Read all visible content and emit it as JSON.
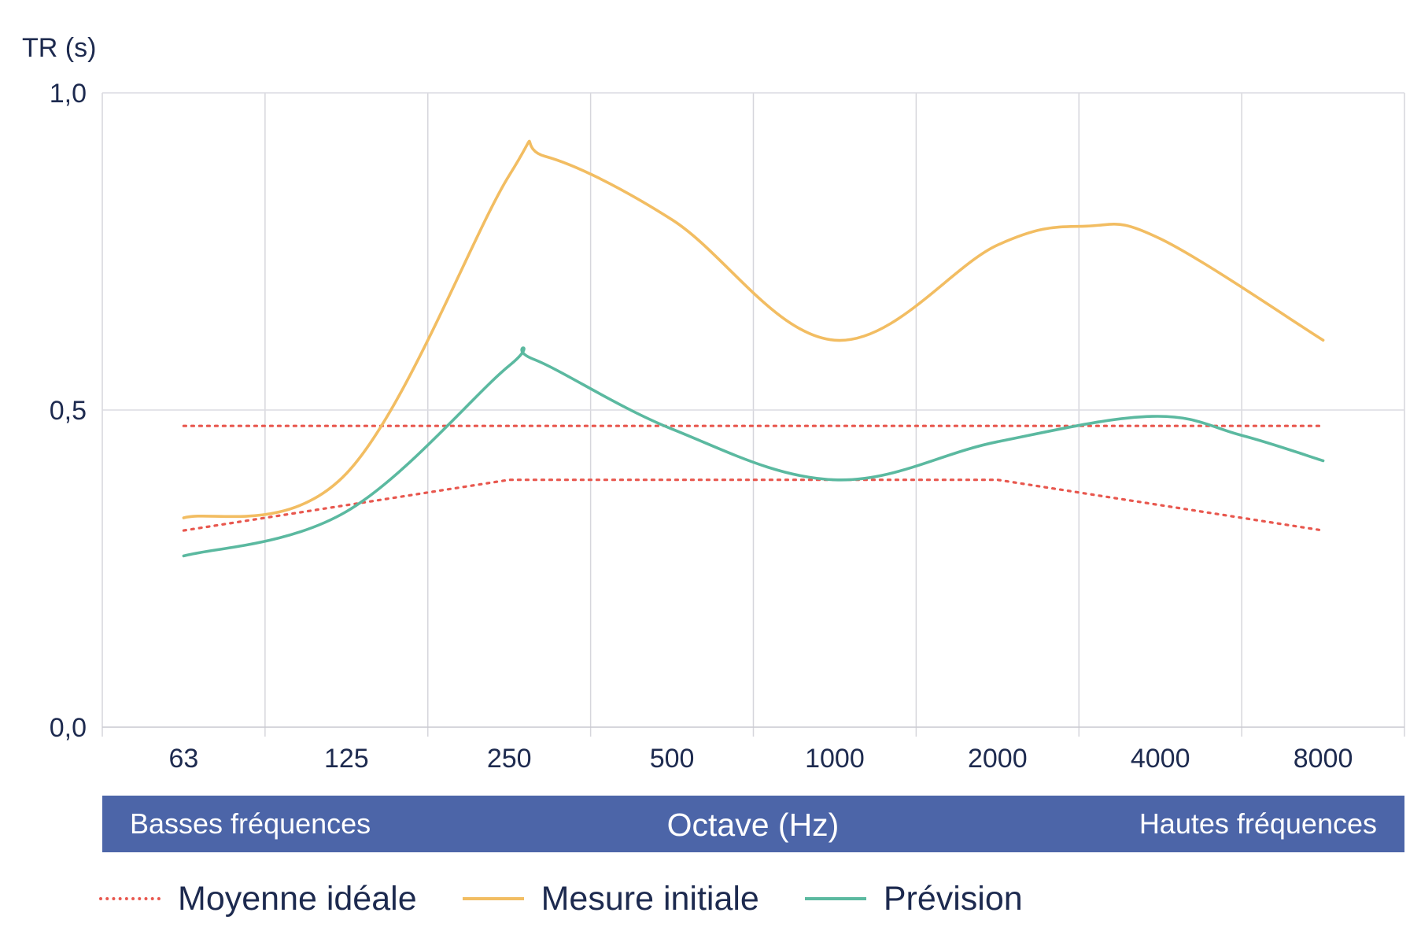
{
  "chart_data": {
    "type": "line",
    "ylabel": "TR (s)",
    "xlabel": "Octave (Hz)",
    "band_left": "Basses fréquences",
    "band_right": "Hautes fréquences",
    "ylim": [
      0,
      1.0
    ],
    "y_ticks": [
      {
        "value": 0.0,
        "label": "0,0"
      },
      {
        "value": 0.5,
        "label": "0,5"
      },
      {
        "value": 1.0,
        "label": "1,0"
      }
    ],
    "categories": [
      "63",
      "125",
      "250",
      "500",
      "1000",
      "2000",
      "4000",
      "8000"
    ],
    "x_range": [
      -0.5,
      7.5
    ],
    "grid": true,
    "legend_position": "bottom",
    "series": [
      {
        "name": "Mesure initiale",
        "color": "#f2bd62",
        "style": "solid",
        "x": [
          0,
          1,
          2,
          2.22,
          3,
          4,
          5,
          5.55,
          6,
          7
        ],
        "values": [
          0.33,
          0.4,
          0.87,
          0.9,
          0.8,
          0.61,
          0.76,
          0.79,
          0.77,
          0.61
        ]
      },
      {
        "name": "Prévision",
        "color": "#5bb9a0",
        "style": "solid",
        "x": [
          0,
          1,
          2,
          2.15,
          3,
          4,
          5,
          5.95,
          6.5,
          7
        ],
        "values": [
          0.27,
          0.34,
          0.57,
          0.58,
          0.47,
          0.39,
          0.45,
          0.49,
          0.46,
          0.42
        ]
      },
      {
        "name": "Moyenne idéale",
        "color": "#e8574e",
        "style": "dotted",
        "bands": [
          {
            "x": [
              0,
              7
            ],
            "values": [
              0.475,
              0.475
            ]
          },
          {
            "x": [
              0,
              2,
              5,
              7
            ],
            "values": [
              0.31,
              0.39,
              0.39,
              0.31
            ]
          }
        ]
      }
    ]
  }
}
